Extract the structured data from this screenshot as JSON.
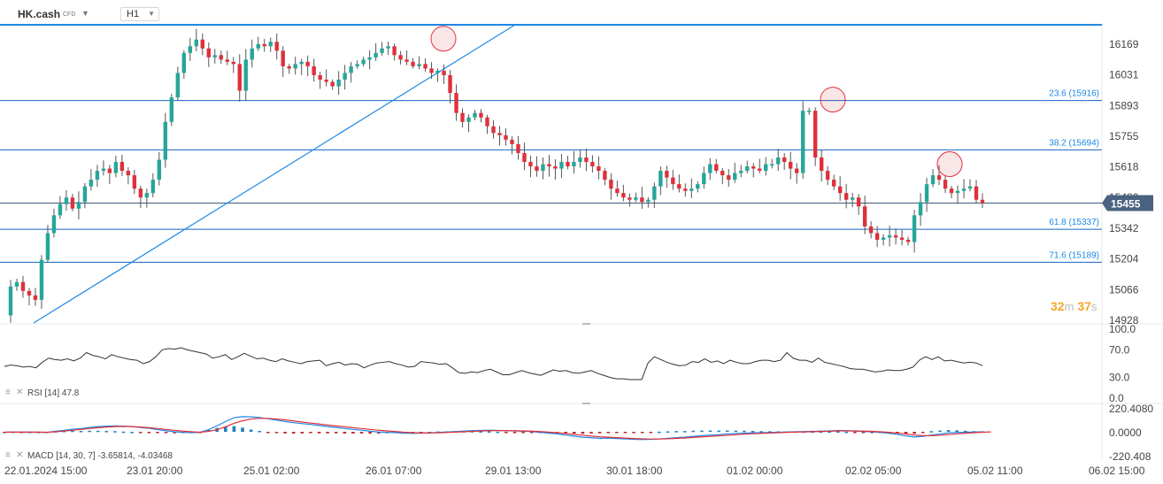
{
  "toolbar": {
    "symbol": "HK.cash",
    "symbol_type": "CFD",
    "timeframe": "H1",
    "caret_icon": "chevron-down-icon"
  },
  "price_axis": {
    "ticks": [
      "16169",
      "16031",
      "15893",
      "15755",
      "15618",
      "15480",
      "15342",
      "15204",
      "15066",
      "14928"
    ],
    "current_price": "15455"
  },
  "fib_labels": [
    "23.6 (15916)",
    "38.2 (15694)",
    "61.8 (15337)",
    "71.6 (15189)"
  ],
  "countdown": {
    "minutes": "32",
    "minutes_unit": "m",
    "seconds": "37",
    "seconds_unit": "s"
  },
  "rsi": {
    "label": "RSI [14] 47.8",
    "ticks": [
      "100.0",
      "70.0",
      "30.0",
      "0.0"
    ]
  },
  "macd": {
    "label": "MACD [14, 30, 7] -3.65814, -4.03468",
    "ticks": [
      "220.4080",
      "0.0000",
      "-220.408"
    ]
  },
  "time_axis": [
    "22.01.2024 15:00",
    "23.01 20:00",
    "25.01 02:00",
    "26.01 07:00",
    "29.01 13:00",
    "30.01 18:00",
    "01.02 00:00",
    "02.02 05:00",
    "05.02 11:00",
    "06.02 15:00"
  ],
  "colors": {
    "bull": "#26a69a",
    "bear": "#e0303a",
    "line": "#1e88e5",
    "level": "#1565c0",
    "accent": "#f5a623"
  },
  "chart_data": {
    "type": "candlestick",
    "timeframe": "H1",
    "ylim": [
      14928,
      16240
    ],
    "levels": [
      {
        "label": "23.6 (15916)",
        "value": 15916
      },
      {
        "label": "38.2 (15694)",
        "value": 15694
      },
      {
        "label": "61.8 (15337)",
        "value": 15337
      },
      {
        "label": "71.6 (15189)",
        "value": 15189
      }
    ],
    "current_price": 15455,
    "close_path": [
      14950,
      15080,
      15100,
      15060,
      15040,
      15020,
      15200,
      15320,
      15400,
      15450,
      15480,
      15430,
      15460,
      15530,
      15560,
      15600,
      15610,
      15590,
      15640,
      15600,
      15580,
      15520,
      15480,
      15500,
      15560,
      15650,
      15820,
      15930,
      16040,
      16130,
      16160,
      16190,
      16150,
      16110,
      16120,
      16100,
      16090,
      16080,
      15960,
      16100,
      16150,
      16170,
      16160,
      16180,
      16140,
      16070,
      16060,
      16080,
      16090,
      16070,
      16030,
      16010,
      16000,
      15980,
      16010,
      16040,
      16070,
      16080,
      16100,
      16110,
      16130,
      16150,
      16160,
      16120,
      16100,
      16090,
      16070,
      16080,
      16060,
      16040,
      16050,
      16030,
      15950,
      15860,
      15820,
      15840,
      15860,
      15840,
      15800,
      15770,
      15760,
      15740,
      15720,
      15680,
      15640,
      15620,
      15600,
      15630,
      15620,
      15610,
      15640,
      15620,
      15640,
      15660,
      15640,
      15620,
      15600,
      15560,
      15520,
      15500,
      15480,
      15470,
      15480,
      15460,
      15470,
      15530,
      15600,
      15570,
      15540,
      15520,
      15510,
      15520,
      15540,
      15590,
      15630,
      15600,
      15580,
      15560,
      15590,
      15600,
      15620,
      15610,
      15600,
      15630,
      15630,
      15660,
      15640,
      15610,
      15590,
      15870,
      15870,
      15660,
      15600,
      15560,
      15530,
      15500,
      15470,
      15480,
      15440,
      15350,
      15320,
      15290,
      15300,
      15310,
      15300,
      15290,
      15280,
      15400,
      15460,
      15540,
      15580,
      15560,
      15520,
      15500,
      15510,
      15520,
      15530,
      15470,
      15455
    ],
    "highlight_markers": [
      16210,
      15920,
      15630
    ],
    "rsi_series": [
      46,
      48,
      47,
      45,
      46,
      44,
      52,
      58,
      56,
      55,
      57,
      54,
      58,
      66,
      62,
      60,
      57,
      63,
      60,
      58,
      56,
      55,
      50,
      53,
      60,
      70,
      72,
      71,
      73,
      70,
      68,
      66,
      64,
      58,
      60,
      63,
      56,
      60,
      65,
      61,
      57,
      58,
      55,
      53,
      57,
      54,
      52,
      50,
      53,
      54,
      55,
      47,
      50,
      52,
      48,
      50,
      49,
      44,
      48,
      51,
      52,
      53,
      50,
      48,
      45,
      46,
      53,
      52,
      51,
      49,
      50,
      44,
      37,
      36,
      38,
      37,
      40,
      42,
      38,
      34,
      34,
      37,
      40,
      37,
      35,
      33,
      37,
      41,
      39,
      40,
      37,
      36,
      38,
      40,
      36,
      33,
      30,
      28,
      28,
      27,
      27,
      27,
      51,
      60,
      56,
      52,
      49,
      47,
      48,
      53,
      52,
      57,
      52,
      54,
      50,
      55,
      52,
      50,
      50,
      53,
      55,
      55,
      53,
      55,
      66,
      58,
      55,
      55,
      52,
      58,
      52,
      50,
      48,
      46,
      43,
      42,
      42,
      40,
      38,
      39,
      41,
      40,
      40,
      42,
      45,
      55,
      60,
      56,
      60,
      54,
      55,
      53,
      51,
      52,
      51,
      47
    ],
    "macd_series": [
      -5,
      -2,
      -4,
      -3,
      -4,
      -6,
      5,
      14,
      24,
      30,
      40,
      48,
      52,
      54,
      52,
      48,
      40,
      32,
      20,
      10,
      0,
      -5,
      -8,
      -5,
      20,
      55,
      95,
      130,
      140,
      138,
      132,
      120,
      108,
      95,
      84,
      75,
      68,
      58,
      48,
      40,
      30,
      22,
      15,
      5,
      -2,
      -5,
      -8,
      -12,
      -14,
      -12,
      -10,
      -6,
      -2,
      2,
      6,
      10,
      12,
      14,
      12,
      10,
      8,
      5,
      2,
      -5,
      -12,
      -20,
      -30,
      -40,
      -50,
      -55,
      -60,
      -58,
      -62,
      -66,
      -70,
      -72,
      -70,
      -66,
      -60,
      -54,
      -50,
      -42,
      -36,
      -30,
      -26,
      -20,
      -16,
      -12,
      -10,
      -8,
      -6,
      -4,
      -2,
      0,
      2,
      4,
      6,
      8,
      12,
      10,
      6,
      2,
      0,
      -6,
      -14,
      -24,
      -38,
      -48,
      -42,
      -30,
      -20,
      -10,
      -6,
      -4,
      -2,
      0
    ],
    "macd_signal": [
      -3,
      -3,
      -3,
      -3,
      -3,
      -4,
      0,
      6,
      14,
      22,
      30,
      38,
      44,
      48,
      50,
      48,
      44,
      38,
      30,
      22,
      14,
      6,
      0,
      -4,
      4,
      20,
      46,
      78,
      102,
      118,
      124,
      124,
      118,
      110,
      100,
      90,
      80,
      72,
      62,
      54,
      46,
      38,
      30,
      22,
      14,
      8,
      2,
      -4,
      -8,
      -10,
      -10,
      -9,
      -6,
      -3,
      0,
      4,
      7,
      10,
      11,
      11,
      10,
      8,
      6,
      2,
      -3,
      -9,
      -16,
      -24,
      -32,
      -40,
      -46,
      -50,
      -54,
      -58,
      -62,
      -65,
      -67,
      -67,
      -64,
      -61,
      -57,
      -52,
      -47,
      -42,
      -37,
      -32,
      -27,
      -22,
      -18,
      -14,
      -11,
      -8,
      -5,
      -3,
      -1,
      1,
      3,
      5,
      8,
      9,
      8,
      6,
      4,
      0,
      -5,
      -12,
      -20,
      -30,
      -36,
      -36,
      -32,
      -26,
      -19,
      -13,
      -8,
      -4,
      -1
    ],
    "trendlines": [
      {
        "from_time": "22.01 15:00",
        "from_price": 14928,
        "to_time": "26.01 14:00",
        "to_price": 16240
      }
    ],
    "horizontal_line": 16230
  }
}
